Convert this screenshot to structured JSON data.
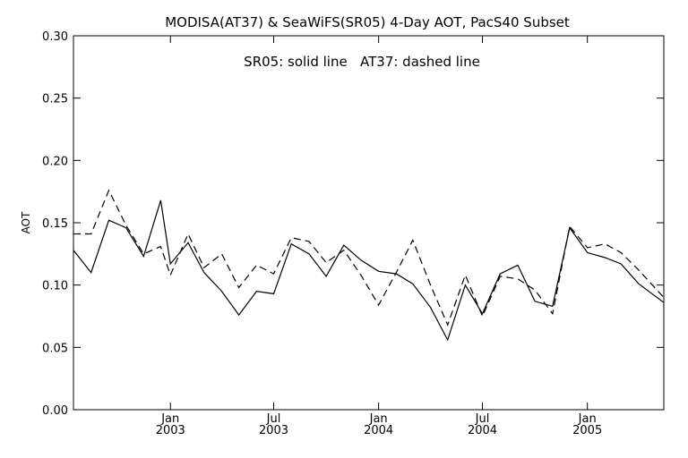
{
  "chart_data": {
    "type": "line",
    "title": "MODISA(AT37) & SeaWiFS(SR05) 4-Day AOT, PacS40 Subset",
    "annotation": "SR05: solid line   AT37: dashed line",
    "ylabel": "AOT",
    "xlabel": "",
    "ylim": [
      0.0,
      0.3
    ],
    "xlim": [
      "2002-07-15",
      "2005-05-15"
    ],
    "y_ticks": [
      "0.00",
      "0.05",
      "0.10",
      "0.15",
      "0.20",
      "0.25",
      "0.30"
    ],
    "x_ticks": [
      {
        "date": "2003-01-01",
        "line1": "Jan",
        "line2": "2003"
      },
      {
        "date": "2003-07-01",
        "line1": "Jul",
        "line2": "2003"
      },
      {
        "date": "2004-01-01",
        "line1": "Jan",
        "line2": "2004"
      },
      {
        "date": "2004-07-01",
        "line1": "Jul",
        "line2": "2004"
      },
      {
        "date": "2005-01-01",
        "line1": "Jan",
        "line2": "2005"
      }
    ],
    "grid": false,
    "series": [
      {
        "name": "SR05",
        "style": "solid",
        "points": [
          [
            "2002-07-15",
            0.128
          ],
          [
            "2002-08-15",
            0.11
          ],
          [
            "2002-09-15",
            0.152
          ],
          [
            "2002-10-15",
            0.146
          ],
          [
            "2002-11-15",
            0.123
          ],
          [
            "2002-12-15",
            0.168
          ],
          [
            "2003-01-01",
            0.117
          ],
          [
            "2003-02-01",
            0.134
          ],
          [
            "2003-03-01",
            0.11
          ],
          [
            "2003-04-01",
            0.095
          ],
          [
            "2003-05-01",
            0.076
          ],
          [
            "2003-06-01",
            0.095
          ],
          [
            "2003-07-01",
            0.093
          ],
          [
            "2003-08-01",
            0.133
          ],
          [
            "2003-09-01",
            0.125
          ],
          [
            "2003-10-01",
            0.107
          ],
          [
            "2003-11-01",
            0.132
          ],
          [
            "2003-12-01",
            0.12
          ],
          [
            "2004-01-01",
            0.111
          ],
          [
            "2004-02-01",
            0.109
          ],
          [
            "2004-03-01",
            0.101
          ],
          [
            "2004-04-01",
            0.082
          ],
          [
            "2004-05-01",
            0.056
          ],
          [
            "2004-06-01",
            0.1
          ],
          [
            "2004-07-01",
            0.077
          ],
          [
            "2004-08-01",
            0.109
          ],
          [
            "2004-09-01",
            0.116
          ],
          [
            "2004-10-01",
            0.087
          ],
          [
            "2004-11-01",
            0.083
          ],
          [
            "2004-12-01",
            0.146
          ],
          [
            "2005-01-01",
            0.126
          ],
          [
            "2005-02-01",
            0.122
          ],
          [
            "2005-03-01",
            0.117
          ],
          [
            "2005-04-01",
            0.101
          ],
          [
            "2005-05-15",
            0.086
          ]
        ]
      },
      {
        "name": "AT37",
        "style": "dashed",
        "points": [
          [
            "2002-07-15",
            0.141
          ],
          [
            "2002-08-15",
            0.141
          ],
          [
            "2002-09-15",
            0.176
          ],
          [
            "2002-10-15",
            0.148
          ],
          [
            "2002-11-15",
            0.125
          ],
          [
            "2002-12-15",
            0.131
          ],
          [
            "2003-01-01",
            0.108
          ],
          [
            "2003-02-01",
            0.141
          ],
          [
            "2003-03-01",
            0.114
          ],
          [
            "2003-04-01",
            0.125
          ],
          [
            "2003-05-01",
            0.098
          ],
          [
            "2003-06-01",
            0.116
          ],
          [
            "2003-07-01",
            0.109
          ],
          [
            "2003-08-01",
            0.138
          ],
          [
            "2003-09-01",
            0.135
          ],
          [
            "2003-10-01",
            0.118
          ],
          [
            "2003-11-01",
            0.128
          ],
          [
            "2003-12-01",
            0.108
          ],
          [
            "2004-01-01",
            0.084
          ],
          [
            "2004-02-01",
            0.11
          ],
          [
            "2004-03-01",
            0.136
          ],
          [
            "2004-04-01",
            0.1
          ],
          [
            "2004-05-01",
            0.068
          ],
          [
            "2004-06-01",
            0.108
          ],
          [
            "2004-07-01",
            0.075
          ],
          [
            "2004-08-01",
            0.107
          ],
          [
            "2004-09-01",
            0.105
          ],
          [
            "2004-10-01",
            0.096
          ],
          [
            "2004-11-01",
            0.077
          ],
          [
            "2004-12-01",
            0.147
          ],
          [
            "2005-01-01",
            0.13
          ],
          [
            "2005-02-01",
            0.133
          ],
          [
            "2005-03-01",
            0.126
          ],
          [
            "2005-04-01",
            0.112
          ],
          [
            "2005-05-15",
            0.09
          ]
        ]
      }
    ]
  }
}
